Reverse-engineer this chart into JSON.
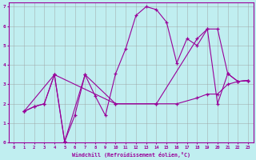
{
  "xlabel": "Windchill (Refroidissement éolien,°C)",
  "background_color": "#c0eef0",
  "grid_color": "#999999",
  "line_color": "#990099",
  "xlim": [
    -0.5,
    23.5
  ],
  "ylim": [
    0,
    7.2
  ],
  "xticks": [
    0,
    1,
    2,
    3,
    4,
    5,
    6,
    7,
    8,
    9,
    10,
    11,
    12,
    13,
    14,
    15,
    16,
    17,
    18,
    19,
    20,
    21,
    22,
    23
  ],
  "yticks": [
    0,
    1,
    2,
    3,
    4,
    5,
    6,
    7
  ],
  "series1_x": [
    1,
    2,
    3,
    4,
    5,
    6,
    7,
    8,
    9,
    10,
    11,
    12,
    13,
    14,
    15,
    16,
    17,
    18,
    19,
    20,
    21,
    22,
    23
  ],
  "series1_y": [
    1.6,
    1.85,
    2.0,
    3.5,
    0.05,
    1.4,
    3.5,
    2.4,
    1.4,
    3.55,
    4.85,
    6.55,
    7.0,
    6.85,
    6.2,
    4.1,
    5.35,
    5.0,
    5.85,
    5.85,
    3.55,
    3.15,
    3.2
  ],
  "series2_x": [
    1,
    2,
    3,
    4,
    5,
    7,
    10,
    14,
    16,
    18,
    19,
    20,
    21,
    22,
    23
  ],
  "series2_y": [
    1.6,
    1.85,
    2.0,
    3.5,
    0.05,
    3.5,
    2.0,
    2.0,
    2.0,
    2.3,
    2.5,
    2.5,
    3.0,
    3.15,
    3.2
  ],
  "series3_x": [
    1,
    4,
    10,
    14,
    18,
    19,
    20,
    21,
    22,
    23
  ],
  "series3_y": [
    1.6,
    3.5,
    2.0,
    2.0,
    5.35,
    5.85,
    2.0,
    3.55,
    3.15,
    3.2
  ]
}
